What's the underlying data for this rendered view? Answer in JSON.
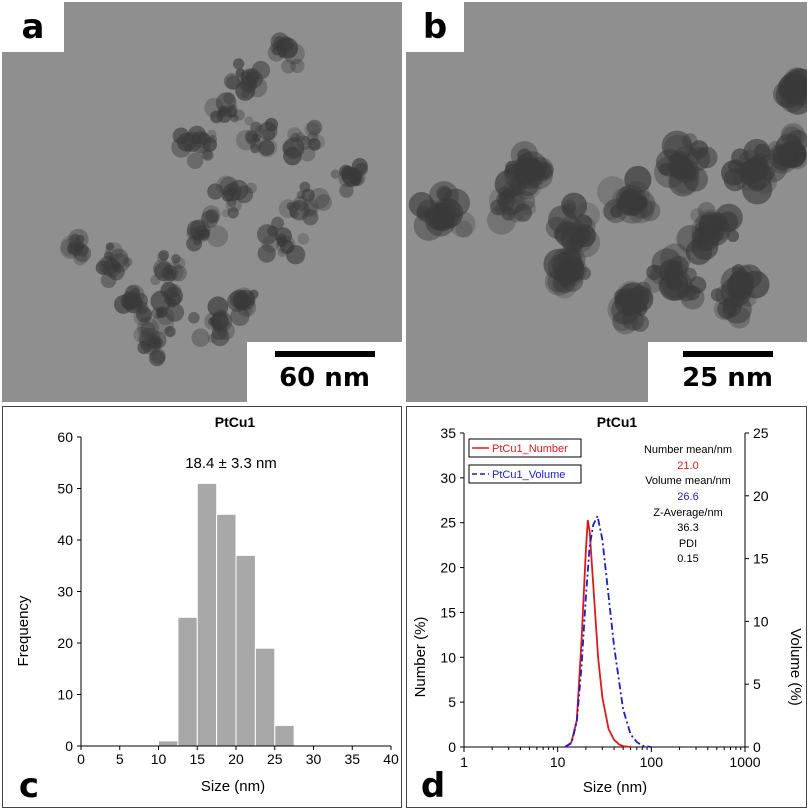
{
  "panels": {
    "a": {
      "letter": "a",
      "scale_label": "60 nm"
    },
    "b": {
      "letter": "b",
      "scale_label": "25 nm"
    },
    "c": {
      "letter": "c"
    },
    "d": {
      "letter": "d"
    }
  },
  "colors": {
    "red": "#dd1a1a",
    "blue": "#1c1ccc",
    "bar_fill": "#a8a8a8",
    "tem_background": "#8f8f8f",
    "particle": "#3a3a3a"
  },
  "chart_data": [
    {
      "type": "bar",
      "title": "PtCu1",
      "annotation": "18.4 ± 3.3 nm",
      "xlabel": "Size (nm)",
      "ylabel": "Frequency",
      "xlim": [
        0,
        40
      ],
      "ylim": [
        0,
        60
      ],
      "xticks": [
        0,
        5,
        10,
        15,
        20,
        25,
        30,
        35,
        40
      ],
      "yticks": [
        0,
        10,
        20,
        30,
        40,
        50,
        60
      ],
      "bin_edges": [
        10,
        12.5,
        15,
        17.5,
        20,
        22.5,
        25,
        27.5
      ],
      "values": [
        1,
        25,
        51,
        45,
        37,
        19,
        4
      ]
    },
    {
      "type": "line",
      "title": "PtCu1",
      "xlabel": "Size (nm)",
      "ylabel": "Number (%)",
      "y2label": "Volume (%)",
      "xscale": "log",
      "xlim": [
        1,
        1000
      ],
      "ylim": [
        0,
        35
      ],
      "y2lim": [
        0,
        25
      ],
      "xticks": [
        1,
        10,
        100,
        1000
      ],
      "yticks": [
        0,
        5,
        10,
        15,
        20,
        25,
        30,
        35
      ],
      "y2ticks": [
        0,
        5,
        10,
        15,
        20,
        25
      ],
      "legend_placement": "top-left",
      "series": [
        {
          "name": "PtCu1_Number",
          "axis": "left",
          "style": "solid",
          "color": "#dd1a1a",
          "x": [
            12,
            14,
            16,
            18,
            20,
            21,
            22,
            24,
            27,
            30,
            35,
            40,
            45,
            50,
            60
          ],
          "y": [
            0,
            0.5,
            3,
            12,
            22,
            25.3,
            24,
            18,
            10,
            5.5,
            2,
            0.8,
            0.3,
            0.1,
            0
          ]
        },
        {
          "name": "PtCu1_Volume",
          "axis": "right",
          "style": "dashed",
          "color": "#1c1ccc",
          "x": [
            12,
            14,
            16,
            18,
            20,
            22,
            24,
            26.6,
            30,
            35,
            40,
            50,
            60,
            70,
            80,
            100
          ],
          "y": [
            0,
            0.3,
            2,
            6.5,
            12,
            16,
            17.7,
            18.4,
            16.5,
            12,
            8,
            3,
            1,
            0.4,
            0.1,
            0
          ]
        }
      ],
      "stats": [
        {
          "label": "Number mean/nm",
          "value": "21.0",
          "color": "#dd1a1a"
        },
        {
          "label": "Volume mean/nm",
          "value": "26.6",
          "color": "#1c1ccc"
        },
        {
          "label": "Z-Average/nm",
          "value": "36.3",
          "color": "#000000"
        },
        {
          "label": "PDI",
          "value": "0.15",
          "color": "#000000"
        }
      ]
    }
  ]
}
